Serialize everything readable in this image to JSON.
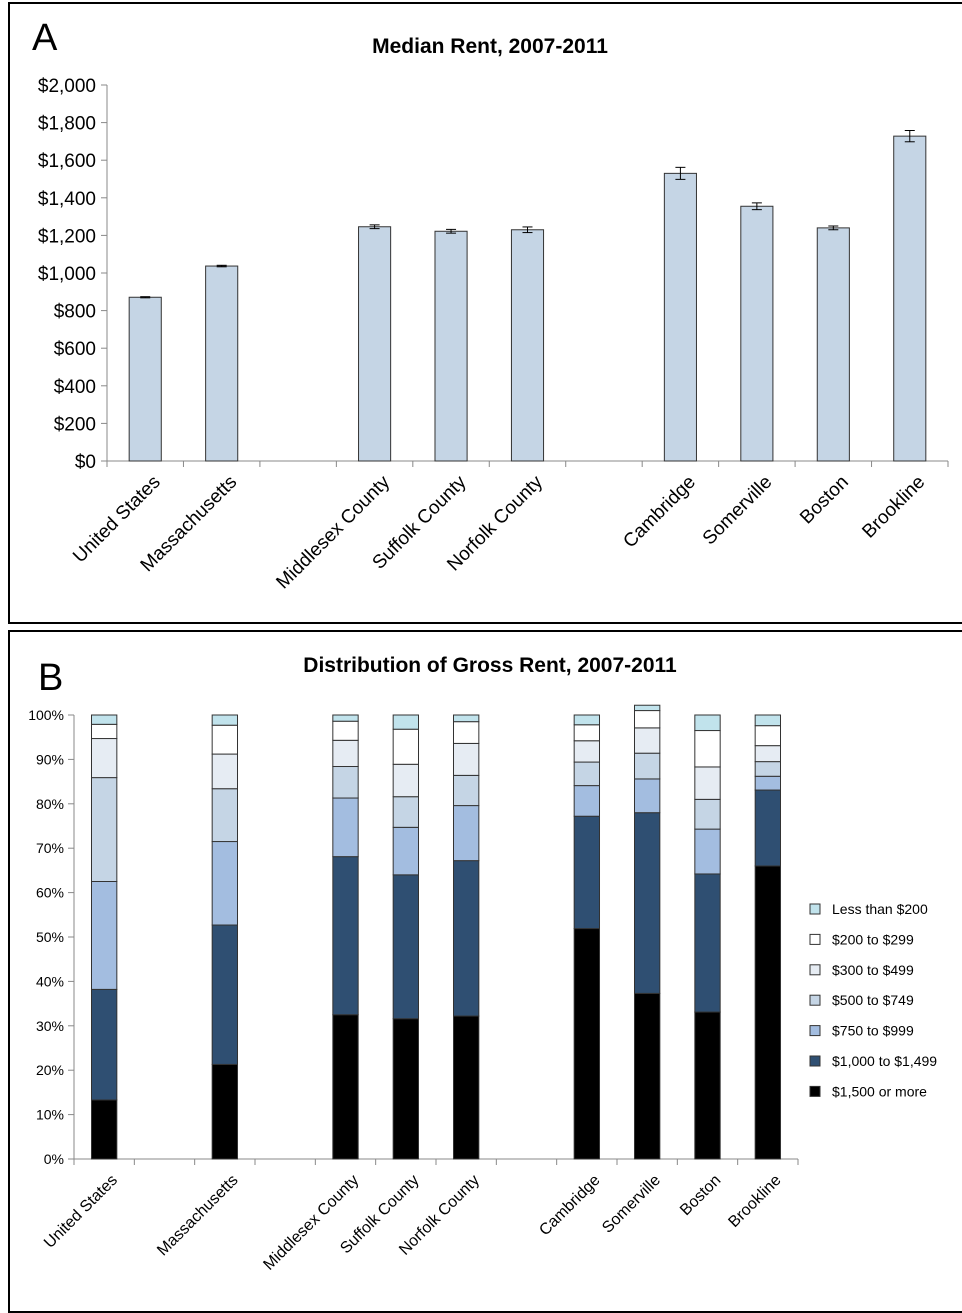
{
  "chart_data": [
    {
      "type": "bar",
      "panel_label": "A",
      "title": "Median Rent, 2007-2011",
      "xlabel": "",
      "ylabel": "",
      "ylim": [
        0,
        2000
      ],
      "yticks": [
        "$0",
        "$200",
        "$400",
        "$600",
        "$800",
        "$1,000",
        "$1,200",
        "$1,400",
        "$1,600",
        "$1,800",
        "$2,000"
      ],
      "grid": false,
      "categories": [
        "United States",
        "Massachusetts",
        "",
        "Middlesex County",
        "Suffolk County",
        "Norfolk County",
        "",
        "Cambridge",
        "Somerville",
        "Boston",
        "Brookline"
      ],
      "values": [
        871,
        1037,
        null,
        1246,
        1222,
        1230,
        null,
        1530,
        1355,
        1240,
        1728
      ],
      "error": [
        3,
        4,
        null,
        10,
        10,
        15,
        null,
        32,
        18,
        10,
        30
      ],
      "bar_color": "#c5d5e5"
    },
    {
      "type": "bar",
      "stacked": true,
      "panel_label": "B",
      "title": "Distribution of Gross Rent, 2007-2011",
      "xlabel": "",
      "ylabel": "",
      "ylim": [
        0,
        100
      ],
      "yticks": [
        "0%",
        "10%",
        "20%",
        "30%",
        "40%",
        "50%",
        "60%",
        "70%",
        "80%",
        "90%",
        "100%"
      ],
      "grid": false,
      "legend_position": "right",
      "categories": [
        "United States",
        "",
        "Massachusetts",
        "",
        "Middlesex County",
        "Suffolk County",
        "Norfolk County",
        "",
        "Cambridge",
        "Somerville",
        "Boston",
        "Brookline"
      ],
      "series": [
        {
          "name": "$1,500 or more",
          "color": "#000000",
          "values": [
            13.3,
            null,
            21.3,
            null,
            32.5,
            31.6,
            32.2,
            null,
            51.9,
            37.3,
            33.1,
            66.0
          ]
        },
        {
          "name": "$1,000 to $1,499",
          "color": "#2f4f72",
          "values": [
            24.9,
            null,
            31.4,
            null,
            35.6,
            32.4,
            35.0,
            null,
            25.3,
            40.7,
            31.1,
            17.1
          ]
        },
        {
          "name": "$750 to $999",
          "color": "#a3bde0",
          "values": [
            24.3,
            null,
            18.8,
            null,
            13.2,
            10.7,
            12.4,
            null,
            6.9,
            7.6,
            10.1,
            3.1
          ]
        },
        {
          "name": "$500 to $749",
          "color": "#c5d5e5",
          "values": [
            23.4,
            null,
            11.9,
            null,
            7.1,
            6.9,
            6.8,
            null,
            5.3,
            5.8,
            6.7,
            3.3
          ]
        },
        {
          "name": "$300 to $499",
          "color": "#e6ecf3",
          "values": [
            8.8,
            null,
            7.8,
            null,
            5.9,
            7.3,
            7.2,
            null,
            4.8,
            5.7,
            7.3,
            3.6
          ]
        },
        {
          "name": "$200 to $299",
          "color": "#ffffff",
          "values": [
            3.2,
            null,
            6.5,
            null,
            4.3,
            7.9,
            4.9,
            null,
            3.6,
            3.9,
            8.2,
            4.5
          ]
        },
        {
          "name": "Less than $200",
          "color": "#c1e3ec",
          "values": [
            2.1,
            null,
            2.3,
            null,
            1.4,
            3.2,
            1.5,
            null,
            2.2,
            1.2,
            3.5,
            2.4
          ]
        }
      ]
    }
  ]
}
